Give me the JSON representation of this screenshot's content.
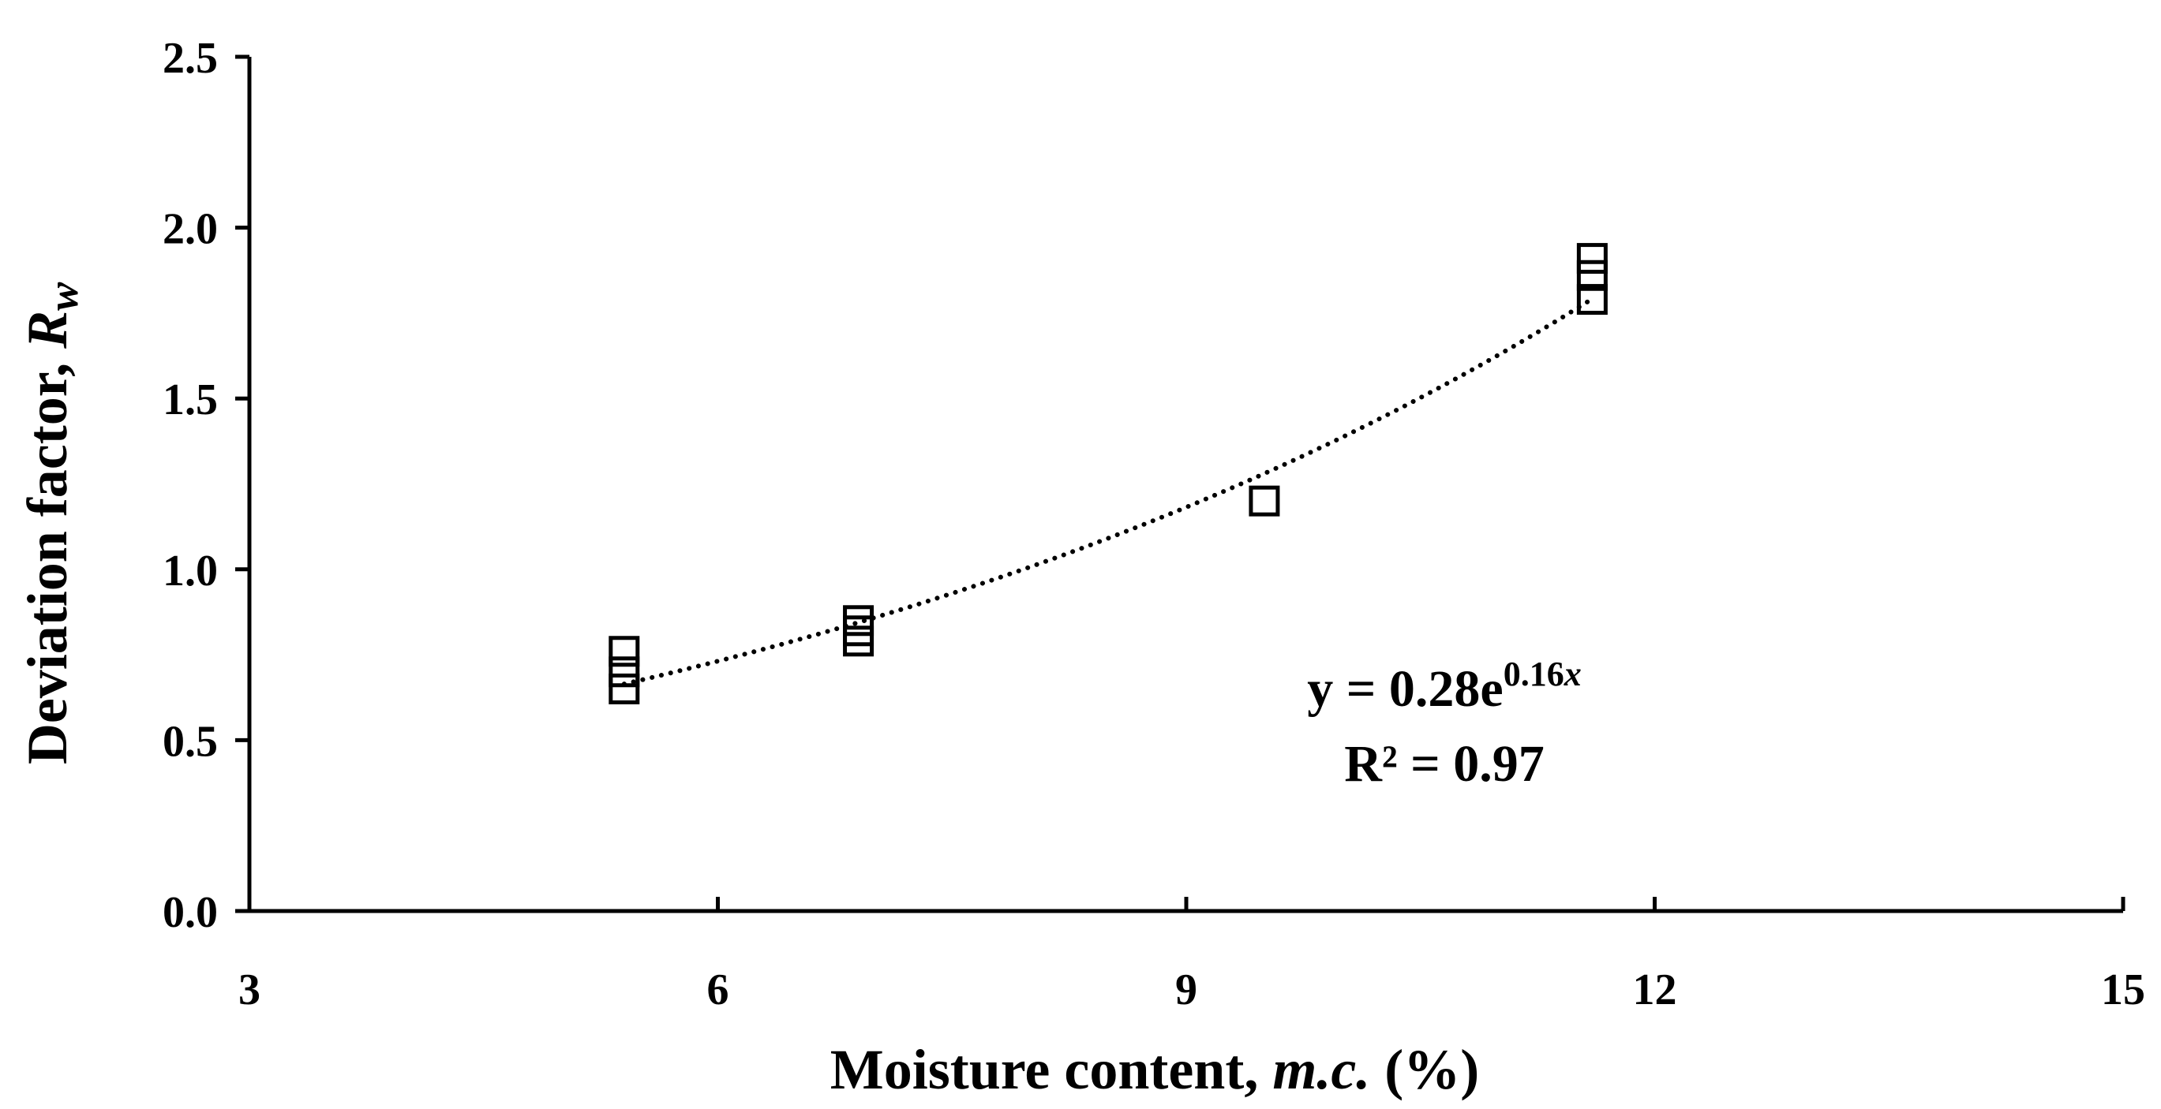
{
  "chart_data": {
    "type": "scatter",
    "title": "",
    "xlabel_main": "Moisture content, ",
    "xlabel_var": "m.c.",
    "xlabel_unit": " (%)",
    "ylabel_main": "Deviation factor, ",
    "ylabel_var": "R",
    "ylabel_sub": "w",
    "xlim": [
      3,
      15
    ],
    "ylim": [
      0,
      2.5
    ],
    "xticks": [
      "3",
      "6",
      "9",
      "12",
      "15"
    ],
    "yticks": [
      "0.0",
      "0.5",
      "1.0",
      "1.5",
      "2.0",
      "2.5"
    ],
    "grid": false,
    "legend": "none",
    "marker": "open-square",
    "points": [
      {
        "x": 5.4,
        "y": 0.65
      },
      {
        "x": 5.4,
        "y": 0.7
      },
      {
        "x": 5.4,
        "y": 0.76
      },
      {
        "x": 6.9,
        "y": 0.79
      },
      {
        "x": 6.9,
        "y": 0.82
      },
      {
        "x": 6.9,
        "y": 0.85
      },
      {
        "x": 9.5,
        "y": 1.2
      },
      {
        "x": 11.6,
        "y": 1.79
      },
      {
        "x": 11.6,
        "y": 1.86
      },
      {
        "x": 11.6,
        "y": 1.91
      }
    ],
    "trendline": {
      "type": "exponential",
      "a": 0.28,
      "b": 0.16,
      "x_range": [
        5.4,
        11.6
      ],
      "style": "dotted"
    },
    "equation": {
      "prefix": "y = 0.28e",
      "exponent": "0.16",
      "exponent_var": "x",
      "r2_label": "R² = 0.97"
    }
  }
}
